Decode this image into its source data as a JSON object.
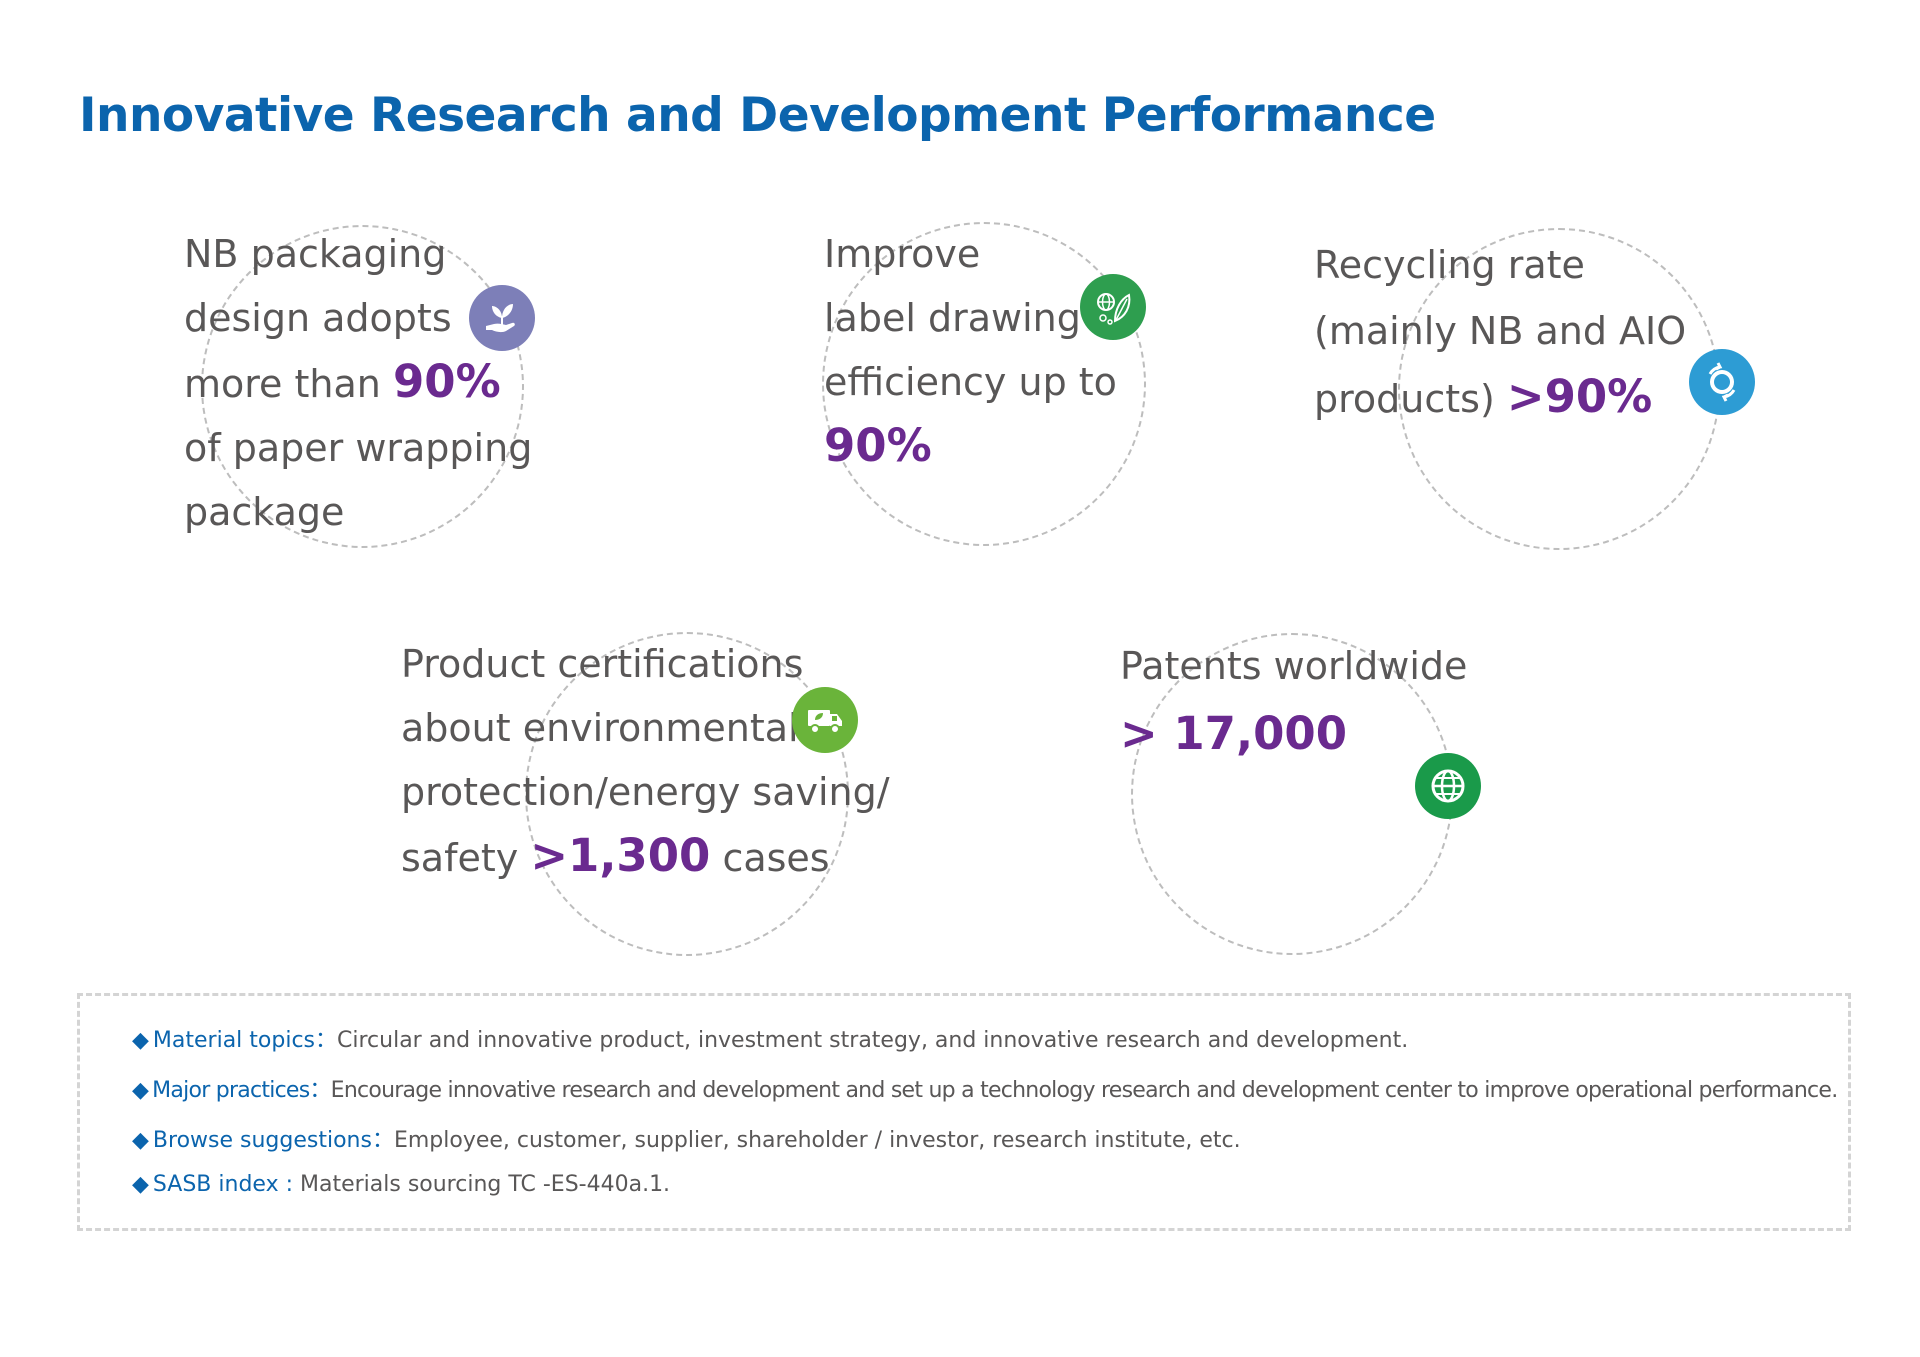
{
  "title": "Innovative Research and Development Performance",
  "stats": [
    {
      "id": "nb-packaging",
      "lines": [
        {
          "text": "NB packaging",
          "highlight": ""
        },
        {
          "text": "design adopts",
          "highlight": ""
        },
        {
          "text": "more than ",
          "highlight": "90%"
        },
        {
          "text": "of paper wrapping",
          "highlight": ""
        },
        {
          "text": "package",
          "highlight": ""
        }
      ],
      "icon": "hand-plant-icon",
      "icon_color": "#7d7fb8"
    },
    {
      "id": "label-drawing",
      "lines": [
        {
          "text": "Improve",
          "highlight": ""
        },
        {
          "text": "label drawing",
          "highlight": ""
        },
        {
          "text": "efficiency up to",
          "highlight": ""
        },
        {
          "text": "",
          "highlight": "90%"
        }
      ],
      "icon": "leaf-globe-icon",
      "icon_color": "#2e9e4f"
    },
    {
      "id": "recycling-rate",
      "lines": [
        {
          "text": "Recycling rate",
          "highlight": ""
        },
        {
          "text": "(mainly NB and AIO",
          "highlight": ""
        },
        {
          "text": "products) ",
          "highlight": ">90%"
        }
      ],
      "icon": "recycle-arrows-icon",
      "icon_color": "#2d9cd4"
    },
    {
      "id": "product-certifications",
      "lines": [
        {
          "text": "Product certifications",
          "highlight": ""
        },
        {
          "text": "about environmental",
          "highlight": ""
        },
        {
          "text": "protection/energy saving/",
          "highlight": ""
        },
        {
          "text": "safety ",
          "highlight": ">1,300",
          "after": " cases"
        }
      ],
      "icon": "truck-icon",
      "icon_color": "#6ab43a"
    },
    {
      "id": "patents",
      "lines": [
        {
          "text": "Patents worldwide",
          "highlight": ""
        },
        {
          "text": "",
          "highlight": "> 17,000"
        }
      ],
      "icon": "globe-icon",
      "icon_color": "#1a9a4a"
    }
  ],
  "info": [
    {
      "label": "Material topics：",
      "text": "Circular and innovative product, investment strategy, and innovative research and development."
    },
    {
      "label": "Major practices：",
      "text": "Encourage innovative research and development and set up a technology research and development center to improve operational performance."
    },
    {
      "label": "Browse suggestions：",
      "text": "Employee, customer, supplier, shareholder / investor, research institute, etc."
    },
    {
      "label": "SASB index : ",
      "text": "Materials sourcing TC -ES-440a.1."
    }
  ],
  "bullet": "◆"
}
